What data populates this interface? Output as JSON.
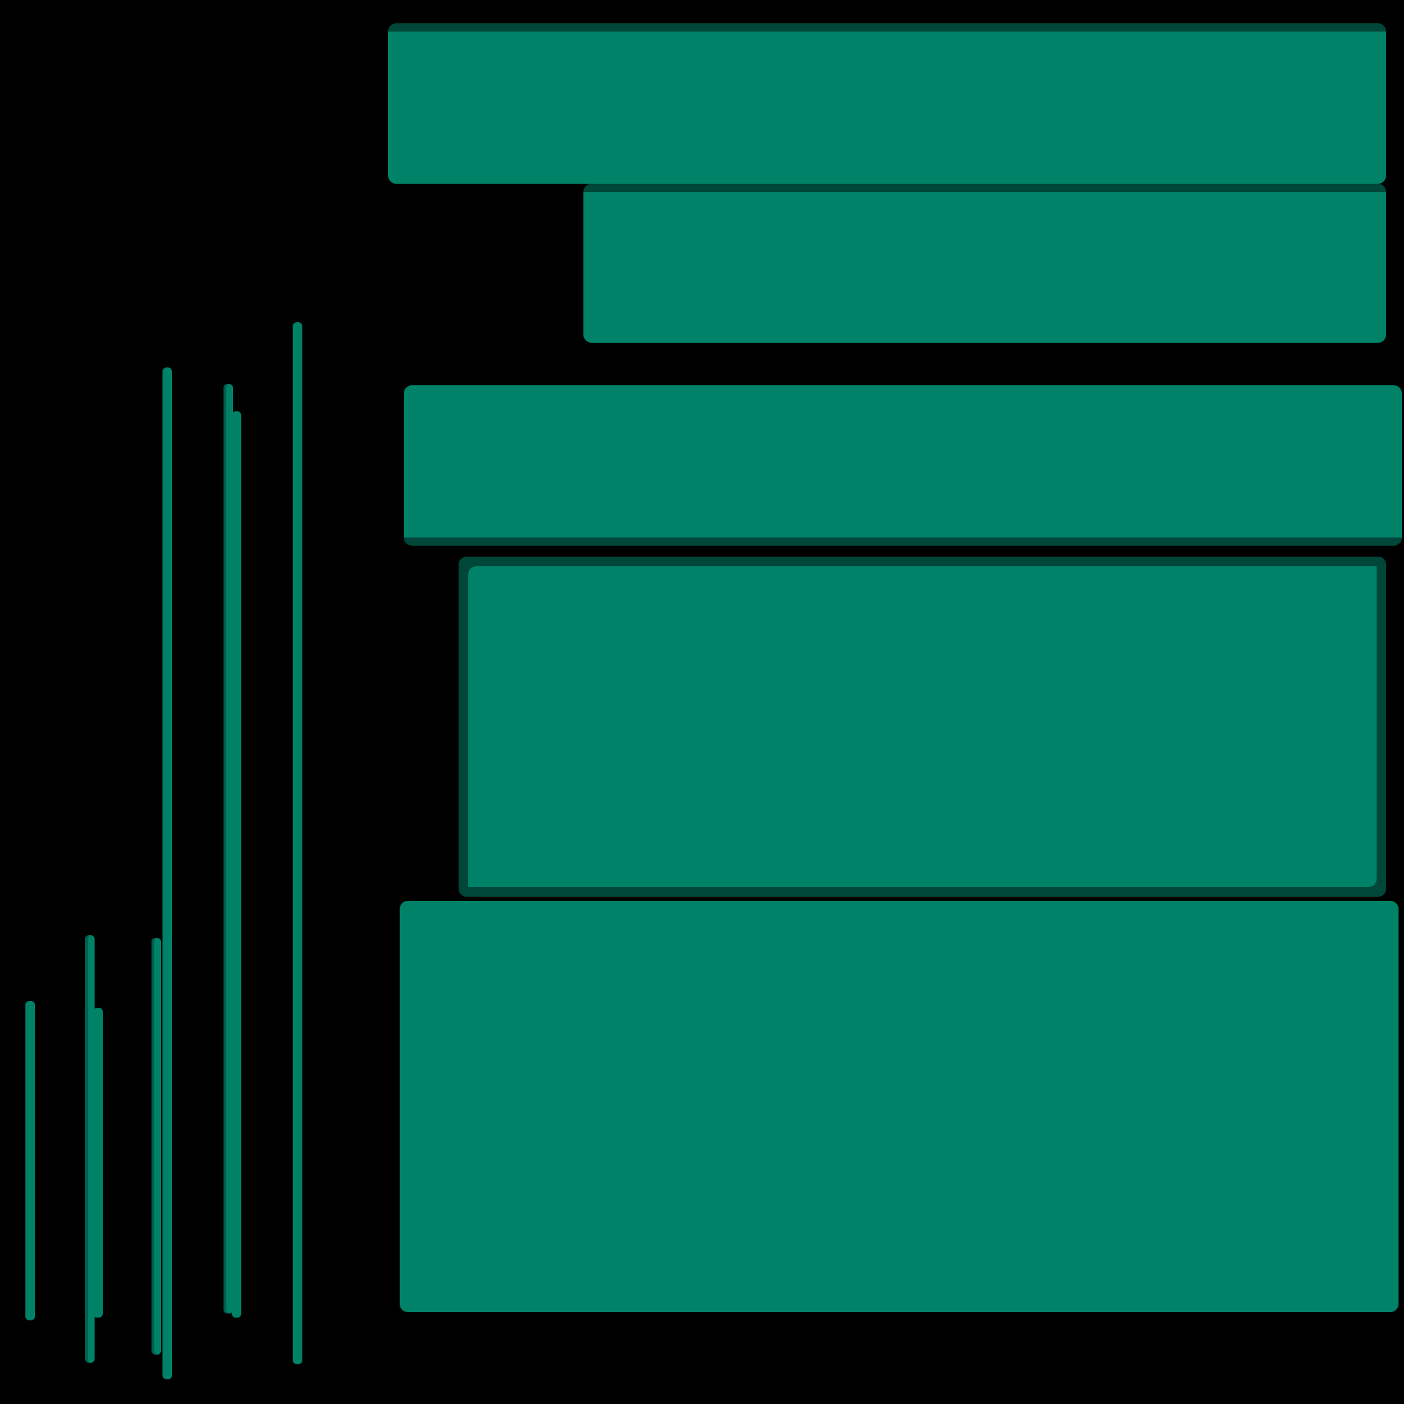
{
  "colors": {
    "background": "#000000",
    "tile": "#008268",
    "tile_shadow": "#00473a"
  }
}
